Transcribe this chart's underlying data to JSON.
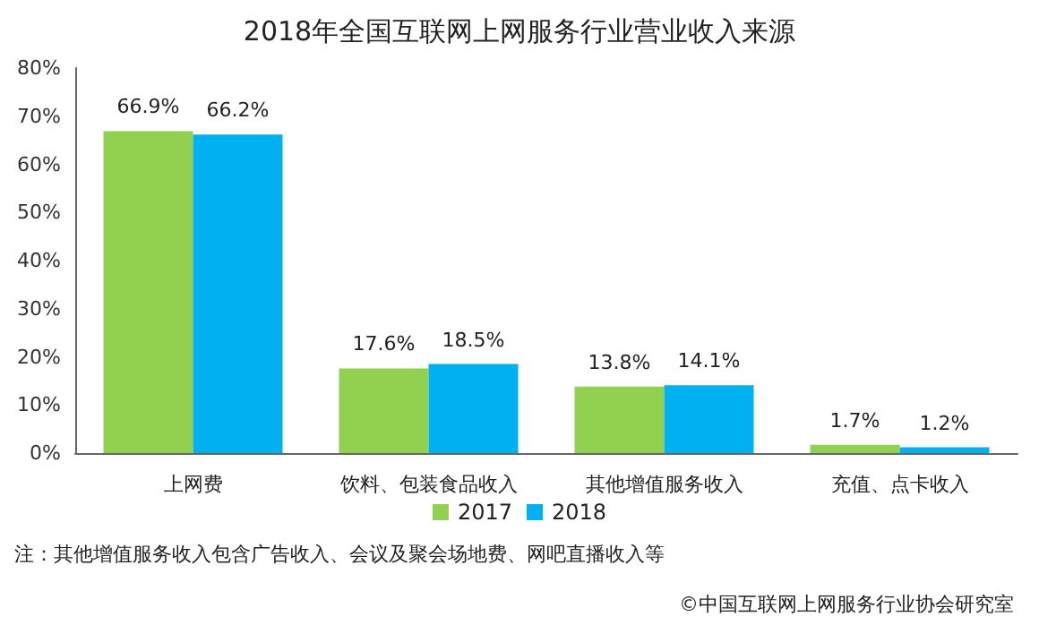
{
  "chart_data": {
    "type": "bar",
    "title": "2018年全国互联网上网服务行业营业收入来源",
    "categories": [
      "上网费",
      "饮料、包装食品收入",
      "其他增值服务收入",
      "充值、点卡收入"
    ],
    "series": [
      {
        "name": "2017",
        "color": "#92d050",
        "values": [
          66.9,
          17.6,
          13.8,
          1.7
        ]
      },
      {
        "name": "2018",
        "color": "#00b0f0",
        "values": [
          66.2,
          18.5,
          14.1,
          1.2
        ]
      }
    ],
    "ylim": [
      0,
      80
    ],
    "yticks": [
      {
        "value": 0,
        "label": "0%"
      },
      {
        "value": 10,
        "label": "10%"
      },
      {
        "value": 20,
        "label": "20%"
      },
      {
        "value": 30,
        "label": "30%"
      },
      {
        "value": 40,
        "label": "40%"
      },
      {
        "value": 50,
        "label": "50%"
      },
      {
        "value": 60,
        "label": "60%"
      },
      {
        "value": 70,
        "label": "70%"
      },
      {
        "value": 80,
        "label": "80%"
      }
    ],
    "grid": false,
    "legend": "bottom",
    "value_labels": [
      [
        "66.9%",
        "17.6%",
        "13.8%",
        "1.7%"
      ],
      [
        "66.2%",
        "18.5%",
        "14.1%",
        "1.2%"
      ]
    ],
    "annotations": [
      "注：其他增值服务收入包含广告收入、会议及聚会场地费、网吧直播收入等",
      "©中国互联网上网服务行业协会研究室"
    ]
  }
}
